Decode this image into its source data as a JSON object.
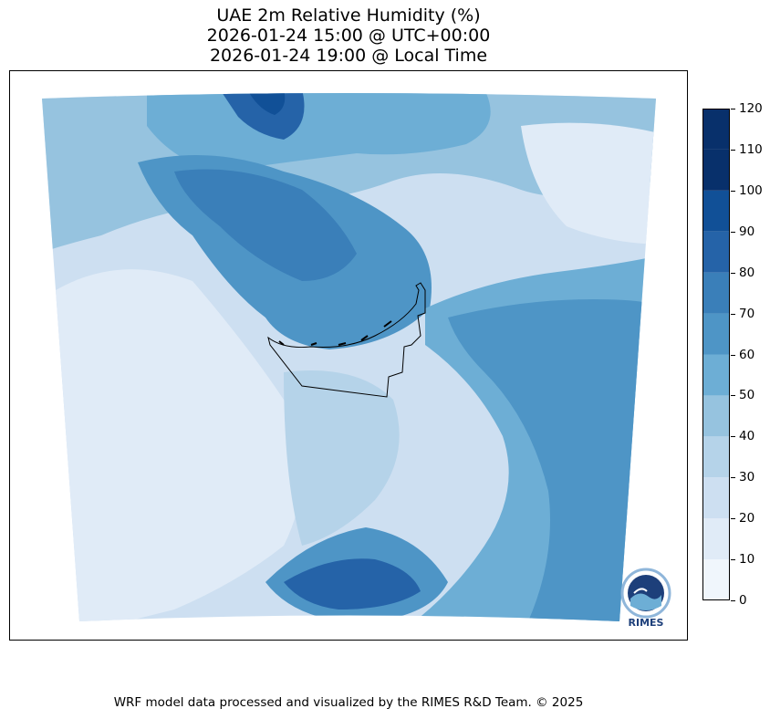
{
  "title": {
    "line1": "UAE 2m Relative Humidity (%)",
    "line2": "2026-01-24 15:00 @ UTC+00:00",
    "line3": "2026-01-24 19:00 @ Local Time"
  },
  "colorbar": {
    "ticks": [
      "120",
      "110",
      "100",
      "90",
      "80",
      "70",
      "60",
      "50",
      "40",
      "30",
      "20",
      "10",
      "0"
    ],
    "levels": [
      0,
      10,
      20,
      30,
      40,
      50,
      60,
      70,
      80,
      90,
      100,
      110,
      120
    ],
    "colors": [
      "#f0f6fc",
      "#e0ebf7",
      "#cddff1",
      "#b5d3e9",
      "#96c3df",
      "#6daed5",
      "#4e95c6",
      "#3a7fb9",
      "#2563a8",
      "#115097",
      "#08306b",
      "#08306b"
    ]
  },
  "logo": {
    "text": "RIMES",
    "icon": "rimes-logo-icon"
  },
  "footer": "WRF model data processed and visualized by the RIMES R&D Team. © 2025"
}
